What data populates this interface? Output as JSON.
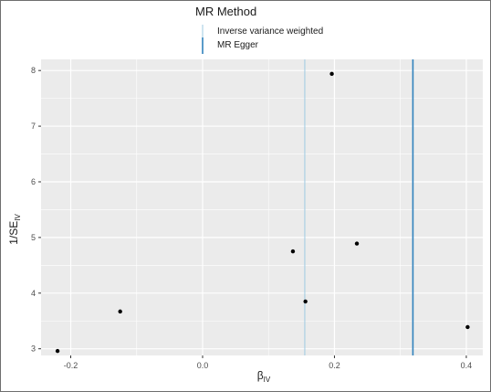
{
  "chart_data": {
    "type": "scatter",
    "title": "",
    "xlabel_main": "β",
    "xlabel_sub": "IV",
    "ylabel_main": "1/SE",
    "ylabel_sub": "IV",
    "xlim": [
      -0.245,
      0.425
    ],
    "ylim": [
      2.88,
      8.2
    ],
    "x_ticks": [
      -0.2,
      0.0,
      0.2,
      0.4
    ],
    "x_tick_labels": [
      "-0.2",
      "0.0",
      "0.2",
      "0.4"
    ],
    "y_ticks": [
      3,
      4,
      5,
      6,
      7,
      8
    ],
    "y_tick_labels": [
      "3",
      "4",
      "5",
      "6",
      "7",
      "8"
    ],
    "grid": true,
    "legend_position": "top",
    "points": [
      {
        "x": -0.22,
        "y": 2.96
      },
      {
        "x": -0.125,
        "y": 3.67
      },
      {
        "x": 0.137,
        "y": 4.75
      },
      {
        "x": 0.156,
        "y": 3.85
      },
      {
        "x": 0.196,
        "y": 7.94
      },
      {
        "x": 0.234,
        "y": 4.89
      },
      {
        "x": 0.402,
        "y": 3.39
      }
    ],
    "lines": [
      {
        "name": "Inverse variance weighted",
        "x": 0.155,
        "color": "#9ecae1"
      },
      {
        "name": "MR Egger",
        "x": 0.319,
        "color": "#3182bd"
      }
    ],
    "legend": {
      "title": "MR Method",
      "entries": [
        "Inverse variance weighted",
        "MR Egger"
      ]
    },
    "colors": {
      "panel_bg": "#ebebeb",
      "grid": "#ffffff",
      "point": "#000000",
      "text": "#4d4d4d"
    }
  }
}
